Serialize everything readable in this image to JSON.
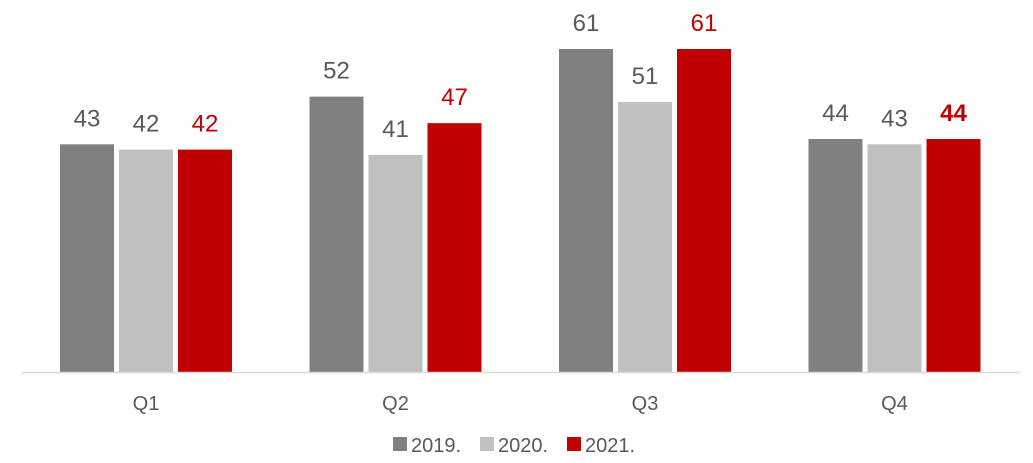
{
  "chart_data": {
    "type": "bar",
    "title": "",
    "xlabel": "",
    "ylabel": "",
    "ylim": [
      0,
      61
    ],
    "grid": false,
    "legend_position": "bottom",
    "categories": [
      "Q1",
      "Q2",
      "Q3",
      "Q4"
    ],
    "series": [
      {
        "name": "2019.",
        "values": [
          43,
          52,
          61,
          44
        ],
        "color": "#808080",
        "label_color": "#595959",
        "label_bold": [
          false,
          false,
          false,
          false
        ]
      },
      {
        "name": "2020.",
        "values": [
          42,
          41,
          51,
          43
        ],
        "color": "#C0C0C0",
        "label_color": "#595959",
        "label_bold": [
          false,
          false,
          false,
          false
        ]
      },
      {
        "name": "2021.",
        "values": [
          42,
          47,
          61,
          44
        ],
        "color": "#C00000",
        "label_color": "#C00000",
        "label_bold": [
          false,
          false,
          false,
          true
        ]
      }
    ],
    "axis_color": "#D9D9D9"
  }
}
